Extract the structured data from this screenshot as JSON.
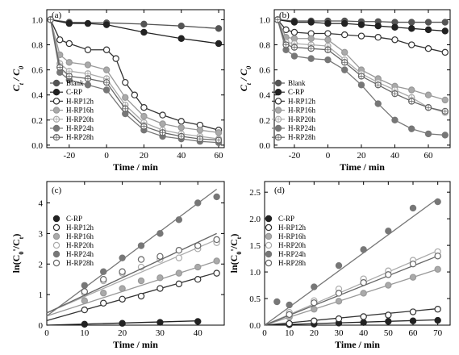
{
  "chart_data": [
    {
      "panel": "(a)",
      "type": "line",
      "xlabel": "Time / min",
      "ylabel": "C_t / C_0",
      "xlim": [
        -32,
        63
      ],
      "ylim": [
        -0.02,
        1.08
      ],
      "xticks": [
        -20,
        0,
        20,
        40,
        60
      ],
      "yticks": [
        0.0,
        0.2,
        0.4,
        0.6,
        0.8,
        1.0
      ],
      "legend_position": "bottom-left",
      "series": [
        {
          "name": "Blank",
          "x": [
            -30,
            -20,
            0,
            20,
            40,
            60
          ],
          "y": [
            1.0,
            0.98,
            0.975,
            0.965,
            0.95,
            0.93
          ],
          "color": "#555555",
          "fill": "#555555",
          "line": true
        },
        {
          "name": "C-RP",
          "x": [
            -30,
            -20,
            -10,
            0,
            20,
            40,
            60
          ],
          "y": [
            1.0,
            0.97,
            0.97,
            0.96,
            0.9,
            0.85,
            0.81
          ],
          "color": "#222222",
          "fill": "#222222",
          "line": true
        },
        {
          "name": "H-RP12h",
          "x": [
            -30,
            -25,
            -20,
            -10,
            0,
            5,
            10,
            15,
            20,
            30,
            40,
            50,
            60
          ],
          "y": [
            1.0,
            0.84,
            0.81,
            0.76,
            0.76,
            0.69,
            0.5,
            0.4,
            0.3,
            0.24,
            0.19,
            0.16,
            0.12
          ],
          "color": "#333333",
          "fill": "#ffffff",
          "line": true
        },
        {
          "name": "H-RP16h",
          "x": [
            -30,
            -25,
            -20,
            -10,
            0,
            10,
            20,
            30,
            40,
            50,
            60
          ],
          "y": [
            1.0,
            0.72,
            0.66,
            0.64,
            0.6,
            0.38,
            0.23,
            0.17,
            0.14,
            0.12,
            0.1
          ],
          "color": "#999999",
          "fill": "#aaaaaa",
          "line": true
        },
        {
          "name": "H-RP20h",
          "x": [
            -30,
            -25,
            -20,
            -10,
            0,
            10,
            20,
            30,
            40,
            50,
            60
          ],
          "y": [
            1.0,
            0.65,
            0.59,
            0.57,
            0.53,
            0.32,
            0.18,
            0.12,
            0.09,
            0.07,
            0.05
          ],
          "color": "#aaaaaa",
          "fill": "#ffffff",
          "line": true
        },
        {
          "name": "H-RP24h",
          "x": [
            -30,
            -25,
            -20,
            -10,
            0,
            10,
            20,
            30,
            40,
            50,
            60
          ],
          "y": [
            1.0,
            0.58,
            0.52,
            0.48,
            0.44,
            0.25,
            0.12,
            0.07,
            0.05,
            0.03,
            0.02
          ],
          "color": "#777777",
          "fill": "#777777",
          "line": true
        },
        {
          "name": "H-RP28h",
          "x": [
            -30,
            -25,
            -20,
            -10,
            0,
            10,
            20,
            30,
            40,
            50,
            60
          ],
          "y": [
            1.0,
            0.62,
            0.55,
            0.53,
            0.5,
            0.29,
            0.15,
            0.1,
            0.07,
            0.05,
            0.04
          ],
          "color": "#666666",
          "fill": "#ffffff",
          "line": true
        }
      ]
    },
    {
      "panel": "(b)",
      "type": "line",
      "xlabel": "Time / min",
      "ylabel": "C_t / C_0",
      "xlim": [
        -32,
        73
      ],
      "ylim": [
        -0.02,
        1.08
      ],
      "xticks": [
        -20,
        0,
        20,
        40,
        60
      ],
      "yticks": [
        0.0,
        0.2,
        0.4,
        0.6,
        0.8,
        1.0
      ],
      "legend_position": "bottom-left",
      "series": [
        {
          "name": "Blank",
          "x": [
            -30,
            -20,
            -10,
            0,
            10,
            20,
            30,
            40,
            50,
            60,
            70
          ],
          "y": [
            1.0,
            0.99,
            0.99,
            0.99,
            0.99,
            0.985,
            0.985,
            0.98,
            0.98,
            0.98,
            0.98
          ],
          "color": "#555555",
          "fill": "#555555",
          "line": true
        },
        {
          "name": "C-RP",
          "x": [
            -30,
            -20,
            -10,
            0,
            10,
            20,
            30,
            40,
            50,
            60,
            70
          ],
          "y": [
            1.0,
            0.98,
            0.98,
            0.97,
            0.97,
            0.96,
            0.95,
            0.94,
            0.93,
            0.92,
            0.91
          ],
          "color": "#222222",
          "fill": "#222222",
          "line": true
        },
        {
          "name": "H-RP12h",
          "x": [
            -30,
            -25,
            -20,
            -10,
            0,
            10,
            20,
            30,
            40,
            50,
            60,
            70
          ],
          "y": [
            1.0,
            0.92,
            0.9,
            0.89,
            0.89,
            0.88,
            0.87,
            0.86,
            0.84,
            0.8,
            0.77,
            0.74
          ],
          "color": "#333333",
          "fill": "#ffffff",
          "line": true
        },
        {
          "name": "H-RP16h",
          "x": [
            -30,
            -25,
            -20,
            -10,
            0,
            10,
            20,
            30,
            40,
            50,
            60,
            70
          ],
          "y": [
            1.0,
            0.86,
            0.85,
            0.85,
            0.84,
            0.74,
            0.6,
            0.53,
            0.47,
            0.44,
            0.4,
            0.36
          ],
          "color": "#999999",
          "fill": "#aaaaaa",
          "line": true
        },
        {
          "name": "H-RP20h",
          "x": [
            -30,
            -25,
            -20,
            -10,
            0,
            10,
            20,
            30,
            40,
            50,
            60,
            70
          ],
          "y": [
            1.0,
            0.82,
            0.81,
            0.8,
            0.79,
            0.68,
            0.57,
            0.5,
            0.44,
            0.38,
            0.3,
            0.26
          ],
          "color": "#aaaaaa",
          "fill": "#ffffff",
          "line": true
        },
        {
          "name": "H-RP24h",
          "x": [
            -30,
            -25,
            -20,
            -10,
            0,
            10,
            20,
            30,
            40,
            50,
            60,
            70
          ],
          "y": [
            1.0,
            0.76,
            0.71,
            0.69,
            0.68,
            0.6,
            0.48,
            0.33,
            0.2,
            0.13,
            0.09,
            0.08
          ],
          "color": "#777777",
          "fill": "#777777",
          "line": true
        },
        {
          "name": "H-RP28h",
          "x": [
            -30,
            -25,
            -20,
            -10,
            0,
            10,
            20,
            30,
            40,
            50,
            60,
            70
          ],
          "y": [
            1.0,
            0.8,
            0.78,
            0.77,
            0.76,
            0.66,
            0.55,
            0.48,
            0.41,
            0.35,
            0.3,
            0.27
          ],
          "color": "#666666",
          "fill": "#ffffff",
          "line": true
        }
      ]
    },
    {
      "panel": "(c)",
      "type": "scatter",
      "xlabel": "Time / min",
      "ylabel": "ln(C_0'/C_t)",
      "xlim": [
        0,
        47
      ],
      "ylim": [
        0,
        4.7
      ],
      "xticks": [
        0,
        10,
        20,
        30,
        40
      ],
      "yticks": [
        0,
        1,
        2,
        3,
        4
      ],
      "legend_position": "top-left",
      "series": [
        {
          "name": "C-RP",
          "x": [
            10,
            20,
            30,
            40
          ],
          "y": [
            0.03,
            0.06,
            0.09,
            0.12
          ],
          "fit": [
            [
              0,
              0.0
            ],
            [
              40,
              0.14
            ]
          ],
          "color": "#222222",
          "fill": "#222222",
          "line": false
        },
        {
          "name": "H-RP12h",
          "x": [
            10,
            15,
            20,
            25,
            30,
            35,
            40,
            45
          ],
          "y": [
            0.5,
            0.72,
            0.85,
            0.95,
            1.2,
            1.35,
            1.5,
            1.7
          ],
          "fit": [
            [
              0,
              0.15
            ],
            [
              45,
              1.72
            ]
          ],
          "color": "#333333",
          "fill": "#ffffff",
          "line": false
        },
        {
          "name": "H-RP16h",
          "x": [
            10,
            15,
            20,
            25,
            30,
            35,
            40,
            45
          ],
          "y": [
            0.8,
            1.05,
            1.2,
            1.45,
            1.55,
            1.7,
            1.9,
            2.1
          ],
          "fit": [
            [
              0,
              0.3
            ],
            [
              45,
              2.1
            ]
          ],
          "color": "#999999",
          "fill": "#aaaaaa",
          "line": false
        },
        {
          "name": "H-RP20h",
          "x": [
            10,
            15,
            20,
            25,
            30,
            35,
            40,
            45
          ],
          "y": [
            1.05,
            1.45,
            1.7,
            1.9,
            2.15,
            2.2,
            2.5,
            2.7
          ],
          "fit": [
            [
              0,
              0.4
            ],
            [
              45,
              2.8
            ]
          ],
          "color": "#aaaaaa",
          "fill": "#ffffff",
          "line": false
        },
        {
          "name": "H-RP24h",
          "x": [
            10,
            15,
            20,
            25,
            30,
            35,
            40,
            45
          ],
          "y": [
            1.3,
            1.75,
            2.2,
            2.6,
            3.0,
            3.45,
            4.0,
            4.2
          ],
          "fit": [
            [
              0,
              0.3
            ],
            [
              45,
              4.45
            ]
          ],
          "color": "#777777",
          "fill": "#777777",
          "line": false
        },
        {
          "name": "H-RP28h",
          "x": [
            10,
            15,
            20,
            25,
            30,
            35,
            40,
            45
          ],
          "y": [
            1.1,
            1.5,
            1.75,
            2.15,
            2.25,
            2.45,
            2.6,
            2.8
          ],
          "fit": [
            [
              0,
              0.4
            ],
            [
              45,
              3.0
            ]
          ],
          "color": "#666666",
          "fill": "#ffffff",
          "line": false
        }
      ]
    },
    {
      "panel": "(d)",
      "type": "scatter",
      "xlabel": "Time / min",
      "ylabel": "ln(C_0'/C_t)",
      "xlim": [
        0,
        75
      ],
      "ylim": [
        0,
        2.7
      ],
      "xticks": [
        0,
        10,
        20,
        30,
        40,
        50,
        60,
        70
      ],
      "yticks": [
        0.0,
        0.5,
        1.0,
        1.5,
        2.0,
        2.5
      ],
      "legend_position": "top-left",
      "series": [
        {
          "name": "C-RP",
          "x": [
            10,
            20,
            30,
            40,
            50,
            60,
            70
          ],
          "y": [
            0.01,
            0.02,
            0.04,
            0.05,
            0.07,
            0.08,
            0.09
          ],
          "fit": [
            [
              0,
              0.0
            ],
            [
              70,
              0.1
            ]
          ],
          "color": "#222222",
          "fill": "#222222",
          "line": false
        },
        {
          "name": "H-RP12h",
          "x": [
            10,
            20,
            30,
            40,
            50,
            60,
            70
          ],
          "y": [
            0.03,
            0.08,
            0.12,
            0.16,
            0.19,
            0.25,
            0.3
          ],
          "fit": [
            [
              0,
              0.0
            ],
            [
              70,
              0.31
            ]
          ],
          "color": "#333333",
          "fill": "#ffffff",
          "line": false
        },
        {
          "name": "H-RP16h",
          "x": [
            10,
            20,
            30,
            40,
            50,
            60,
            70
          ],
          "y": [
            0.15,
            0.3,
            0.45,
            0.6,
            0.75,
            0.9,
            1.05
          ],
          "fit": [
            [
              0,
              0.0
            ],
            [
              70,
              1.05
            ]
          ],
          "color": "#999999",
          "fill": "#aaaaaa",
          "line": false
        },
        {
          "name": "H-RP20h",
          "x": [
            10,
            20,
            30,
            40,
            50,
            60,
            70
          ],
          "y": [
            0.24,
            0.46,
            0.68,
            0.87,
            1.02,
            1.22,
            1.38
          ],
          "fit": [
            [
              0,
              0.0
            ],
            [
              70,
              1.4
            ]
          ],
          "color": "#aaaaaa",
          "fill": "#ffffff",
          "line": false
        },
        {
          "name": "H-RP24h",
          "x": [
            5,
            10,
            20,
            30,
            40,
            50,
            60,
            70
          ],
          "y": [
            0.44,
            0.38,
            0.72,
            1.12,
            1.42,
            1.77,
            2.2,
            2.32
          ],
          "fit": [
            [
              0,
              0.0
            ],
            [
              70,
              2.38
            ]
          ],
          "color": "#777777",
          "fill": "#777777",
          "line": false
        },
        {
          "name": "H-RP28h",
          "x": [
            10,
            20,
            30,
            40,
            50,
            60,
            70
          ],
          "y": [
            0.2,
            0.42,
            0.6,
            0.8,
            0.95,
            1.15,
            1.3
          ],
          "fit": [
            [
              0,
              0.0
            ],
            [
              70,
              1.3
            ]
          ],
          "color": "#666666",
          "fill": "#ffffff",
          "line": false
        }
      ]
    }
  ]
}
